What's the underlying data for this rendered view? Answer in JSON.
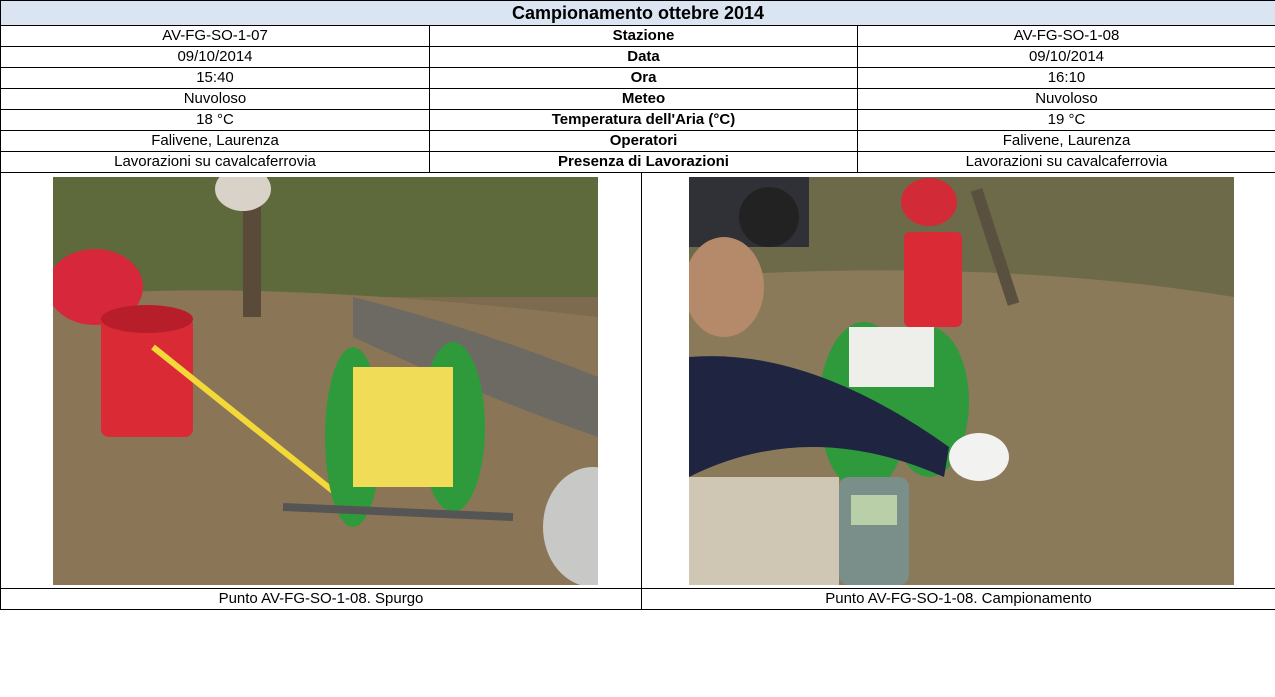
{
  "header": {
    "title": "Campionamento ottebre 2014"
  },
  "table": {
    "rows": [
      [
        "AV-FG-SO-1-07",
        "Stazione",
        "AV-FG-SO-1-08"
      ],
      [
        "09/10/2014",
        "Data",
        "09/10/2014"
      ],
      [
        "15:40",
        "Ora",
        "16:10"
      ],
      [
        "Nuvoloso",
        "Meteo",
        "Nuvoloso"
      ],
      [
        "18 °C",
        "Temperatura dell'Aria (°C)",
        "19 °C"
      ],
      [
        "Falivene, Laurenza",
        "Operatori",
        "Falivene, Laurenza"
      ],
      [
        "Lavorazioni su cavalcaferrovia",
        "Presenza di Lavorazioni",
        "Lavorazioni su cavalcaferrovia"
      ]
    ]
  },
  "photos": [
    {
      "caption": "Punto AV-FG-SO-1-08. Spurgo"
    },
    {
      "caption": "Punto AV-FG-SO-1-08. Campionamento"
    }
  ]
}
